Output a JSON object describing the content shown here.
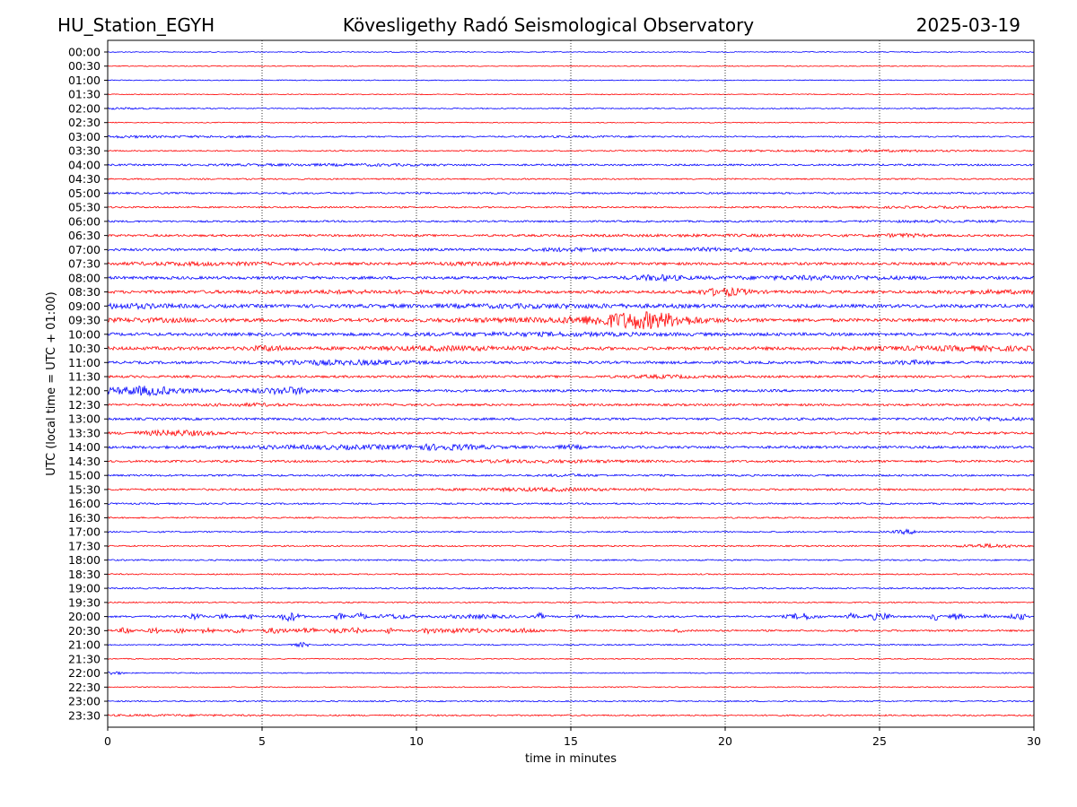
{
  "header": {
    "left": "HU_Station_EGYH",
    "center": "Kövesligethy Radó Seismological Observatory",
    "right": "2025-03-19"
  },
  "chart_data": {
    "type": "line",
    "title": "Kövesligethy Radó Seismological Observatory",
    "xlabel": "time in minutes",
    "ylabel": "UTC (local time = UTC + 01:00)",
    "xlim": [
      0,
      30
    ],
    "x_ticks": [
      "0",
      "5",
      "10",
      "15",
      "20",
      "25",
      "30"
    ],
    "vertical_gridlines_at": [
      5,
      10,
      15,
      20,
      25
    ],
    "grid": "dotted vertical",
    "row_colors": [
      "#0000ff",
      "#ff0000"
    ],
    "rows": [
      {
        "label": "00:00",
        "noise": 0.5,
        "bursts": []
      },
      {
        "label": "00:30",
        "noise": 0.5,
        "bursts": []
      },
      {
        "label": "01:00",
        "noise": 0.5,
        "bursts": []
      },
      {
        "label": "01:30",
        "noise": 0.5,
        "bursts": []
      },
      {
        "label": "02:00",
        "noise": 0.6,
        "bursts": [
          [
            0.5,
            2.5,
            0.6
          ]
        ]
      },
      {
        "label": "02:30",
        "noise": 0.5,
        "bursts": []
      },
      {
        "label": "03:00",
        "noise": 0.8,
        "bursts": [
          [
            0.5,
            3,
            0.6
          ],
          [
            3.2,
            5,
            0.5
          ],
          [
            15.5,
            5,
            0.4
          ]
        ]
      },
      {
        "label": "03:30",
        "noise": 0.7,
        "bursts": [
          [
            25.5,
            6,
            0.6
          ],
          [
            22,
            8,
            0.4
          ]
        ]
      },
      {
        "label": "04:00",
        "noise": 1.0,
        "bursts": [
          [
            8.5,
            6,
            0.6
          ],
          [
            5,
            5,
            0.4
          ]
        ]
      },
      {
        "label": "04:30",
        "noise": 0.8,
        "bursts": []
      },
      {
        "label": "05:00",
        "noise": 1.0,
        "bursts": []
      },
      {
        "label": "05:30",
        "noise": 0.9,
        "bursts": [
          [
            27,
            8,
            0.5
          ]
        ]
      },
      {
        "label": "06:00",
        "noise": 1.0,
        "bursts": [
          [
            27,
            6,
            0.5
          ]
        ]
      },
      {
        "label": "06:30",
        "noise": 1.2,
        "bursts": [
          [
            25.8,
            2,
            1.2
          ],
          [
            20,
            10,
            0.5
          ]
        ]
      },
      {
        "label": "07:00",
        "noise": 1.4,
        "bursts": [
          [
            15,
            3,
            1.2
          ],
          [
            19.5,
            4,
            1.0
          ]
        ]
      },
      {
        "label": "07:30",
        "noise": 1.5,
        "bursts": [
          [
            3,
            6,
            1.0
          ],
          [
            12,
            5,
            0.8
          ]
        ]
      },
      {
        "label": "08:00",
        "noise": 1.6,
        "bursts": [
          [
            17.8,
            2,
            2.2
          ],
          [
            23,
            8,
            1.2
          ]
        ]
      },
      {
        "label": "08:30",
        "noise": 1.6,
        "bursts": [
          [
            20,
            2,
            3.5
          ],
          [
            8,
            10,
            0.8
          ],
          [
            29,
            5,
            1.0
          ]
        ]
      },
      {
        "label": "09:00",
        "noise": 1.9,
        "bursts": [
          [
            0.5,
            4,
            1.6
          ],
          [
            14,
            10,
            1.0
          ]
        ]
      },
      {
        "label": "09:30",
        "noise": 1.8,
        "bursts": [
          [
            17.3,
            4,
            7.5
          ],
          [
            15,
            10,
            1.4
          ],
          [
            1.5,
            6,
            1.0
          ]
        ]
      },
      {
        "label": "10:00",
        "noise": 1.7,
        "bursts": [
          [
            14,
            10,
            1.0
          ]
        ]
      },
      {
        "label": "10:30",
        "noise": 1.8,
        "bursts": [
          [
            5.2,
            1.5,
            2.0
          ],
          [
            11,
            6,
            1.4
          ],
          [
            28,
            8,
            1.4
          ]
        ]
      },
      {
        "label": "11:00",
        "noise": 1.5,
        "bursts": [
          [
            6.2,
            3,
            1.6
          ],
          [
            8.5,
            4,
            1.6
          ],
          [
            26,
            1.5,
            1.5
          ]
        ]
      },
      {
        "label": "11:30",
        "noise": 1.3,
        "bursts": [
          [
            18,
            3,
            1.0
          ]
        ]
      },
      {
        "label": "12:00",
        "noise": 1.4,
        "bursts": [
          [
            1.4,
            2,
            3.5
          ],
          [
            0.3,
            2,
            2.0
          ],
          [
            5.9,
            2,
            3.0
          ],
          [
            3.5,
            6,
            1.0
          ]
        ]
      },
      {
        "label": "12:30",
        "noise": 1.2,
        "bursts": [
          [
            4.5,
            3,
            1.0
          ]
        ]
      },
      {
        "label": "13:00",
        "noise": 1.3,
        "bursts": [
          [
            28.5,
            3,
            1.2
          ]
        ]
      },
      {
        "label": "13:30",
        "noise": 1.3,
        "bursts": [
          [
            2.2,
            3,
            2.4
          ]
        ]
      },
      {
        "label": "14:00",
        "noise": 1.4,
        "bursts": [
          [
            8,
            10,
            1.4
          ],
          [
            11,
            3,
            1.6
          ],
          [
            15,
            1,
            1.5
          ]
        ]
      },
      {
        "label": "14:30",
        "noise": 1.2,
        "bursts": [
          [
            14,
            8,
            0.8
          ]
        ]
      },
      {
        "label": "15:00",
        "noise": 1.0,
        "bursts": [
          [
            15,
            2,
            0.8
          ]
        ]
      },
      {
        "label": "15:30",
        "noise": 1.1,
        "bursts": [
          [
            14,
            6,
            1.2
          ]
        ]
      },
      {
        "label": "16:00",
        "noise": 0.9,
        "bursts": []
      },
      {
        "label": "16:30",
        "noise": 0.8,
        "bursts": []
      },
      {
        "label": "17:00",
        "noise": 0.8,
        "bursts": [
          [
            25.9,
            1,
            2.0
          ]
        ]
      },
      {
        "label": "17:30",
        "noise": 0.8,
        "bursts": [
          [
            28.5,
            2.5,
            1.6
          ]
        ]
      },
      {
        "label": "18:00",
        "noise": 0.8,
        "bursts": []
      },
      {
        "label": "18:30",
        "noise": 0.7,
        "bursts": []
      },
      {
        "label": "19:00",
        "noise": 0.8,
        "bursts": []
      },
      {
        "label": "19:30",
        "noise": 0.7,
        "bursts": []
      },
      {
        "label": "20:00",
        "noise": 1.0,
        "bursts": [
          [
            2.8,
            0.6,
            3.0
          ],
          [
            3.7,
            0.4,
            3.0
          ],
          [
            4.6,
            0.4,
            2.5
          ],
          [
            5.9,
            0.8,
            4.5
          ],
          [
            7.5,
            0.4,
            3.0
          ],
          [
            8.2,
            0.4,
            3.5
          ],
          [
            9.3,
            1.5,
            2.0
          ],
          [
            12,
            3,
            1.5
          ],
          [
            14,
            0.3,
            3.0
          ],
          [
            15.3,
            0.3,
            2.5
          ],
          [
            22.5,
            1.2,
            3.0
          ],
          [
            24.1,
            0.4,
            3.0
          ],
          [
            24.8,
            0.4,
            3.0
          ],
          [
            25.2,
            0.5,
            3.5
          ],
          [
            26.8,
            0.4,
            3.5
          ],
          [
            27.5,
            0.5,
            3.0
          ],
          [
            28.5,
            0.4,
            2.5
          ],
          [
            29.5,
            0.6,
            3.5
          ]
        ]
      },
      {
        "label": "20:30",
        "noise": 1.0,
        "bursts": [
          [
            0.6,
            0.5,
            3.5
          ],
          [
            1.5,
            0.4,
            3.0
          ],
          [
            2.3,
            0.5,
            3.0
          ],
          [
            3.2,
            0.6,
            2.8
          ],
          [
            4.2,
            0.5,
            2.5
          ],
          [
            5.4,
            1.0,
            2.5
          ],
          [
            6.5,
            1.0,
            2.5
          ],
          [
            7.4,
            0.5,
            2.5
          ],
          [
            8.0,
            0.8,
            2.5
          ],
          [
            9.1,
            0.4,
            2.5
          ],
          [
            10.4,
            0.4,
            2.8
          ],
          [
            11.5,
            2.5,
            2.0
          ],
          [
            13.5,
            1.5,
            1.8
          ],
          [
            18.5,
            0.3,
            1.5
          ]
        ]
      },
      {
        "label": "21:00",
        "noise": 0.7,
        "bursts": [
          [
            6.3,
            0.6,
            2.0
          ]
        ]
      },
      {
        "label": "21:30",
        "noise": 0.6,
        "bursts": []
      },
      {
        "label": "22:00",
        "noise": 0.6,
        "bursts": [
          [
            0.2,
            0.6,
            1.8
          ]
        ]
      },
      {
        "label": "22:30",
        "noise": 0.6,
        "bursts": []
      },
      {
        "label": "23:00",
        "noise": 0.7,
        "bursts": []
      },
      {
        "label": "23:30",
        "noise": 0.8,
        "bursts": [
          [
            2,
            6,
            0.5
          ]
        ]
      }
    ]
  }
}
